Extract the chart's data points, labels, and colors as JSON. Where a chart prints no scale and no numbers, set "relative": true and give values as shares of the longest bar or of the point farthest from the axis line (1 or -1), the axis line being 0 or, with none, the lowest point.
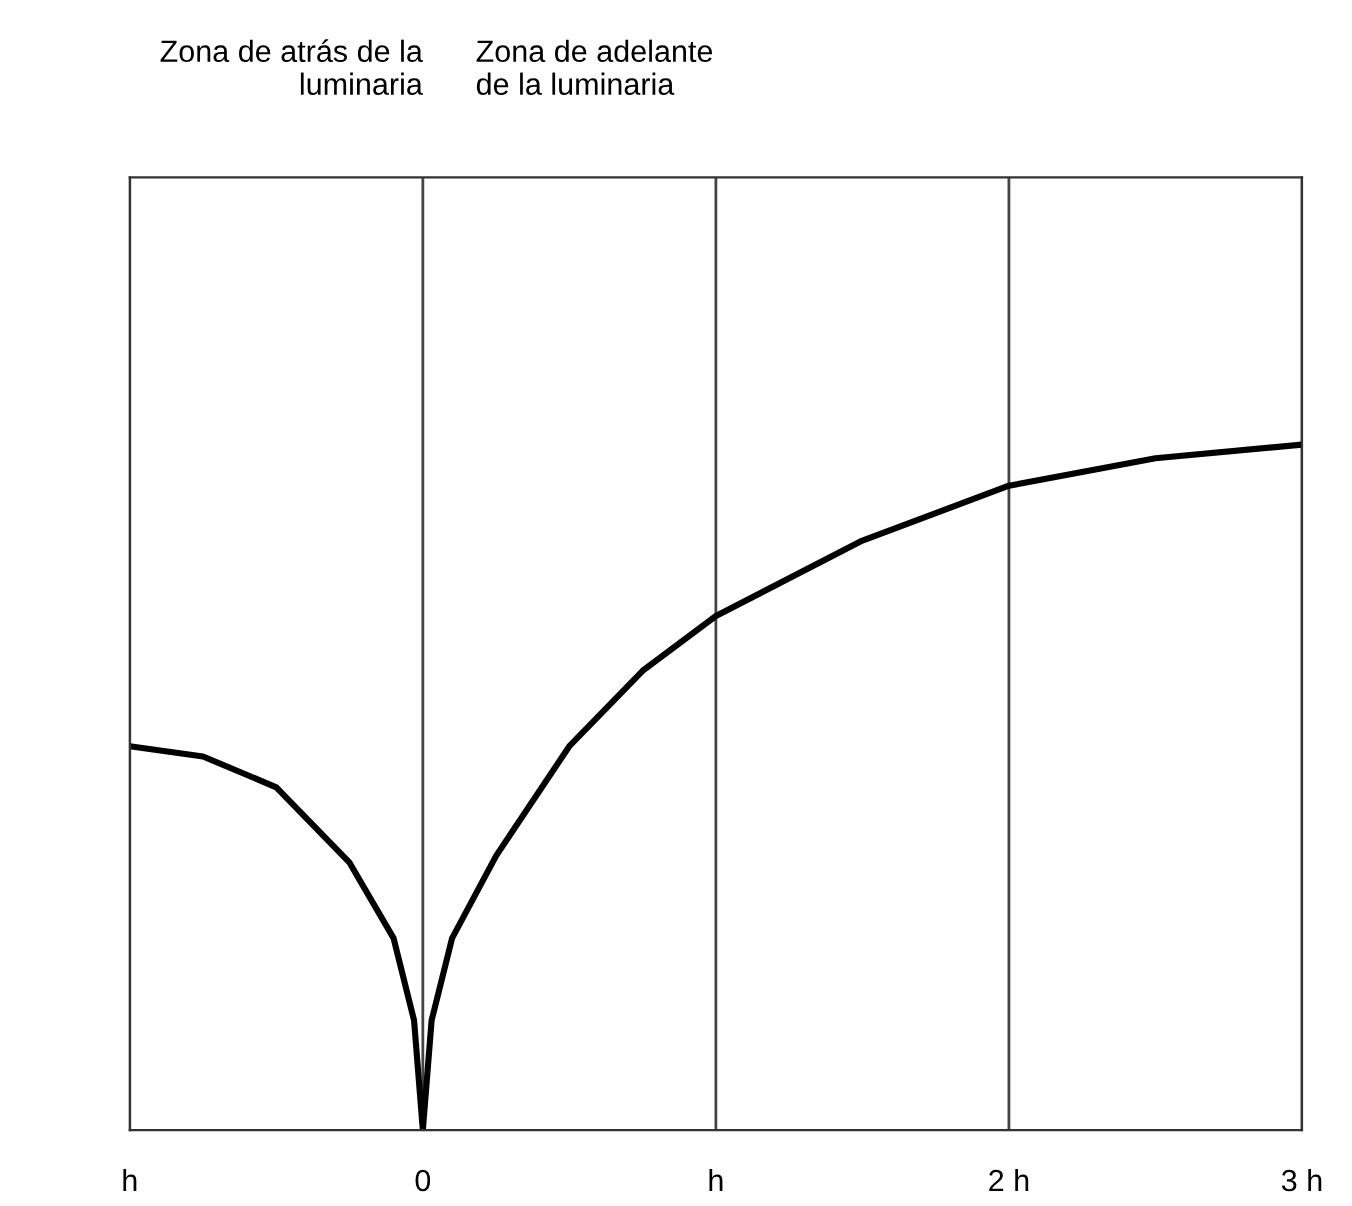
{
  "chart_data": {
    "type": "line",
    "relative": true,
    "x": [
      -1,
      -0.75,
      -0.5,
      -0.25,
      -0.1,
      -0.03,
      0,
      0.03,
      0.1,
      0.25,
      0.5,
      0.75,
      1,
      1.5,
      2,
      2.5,
      3
    ],
    "values": [
      0.56,
      0.545,
      0.5,
      0.39,
      0.28,
      0.16,
      0,
      0.16,
      0.28,
      0.4,
      0.56,
      0.67,
      0.75,
      0.86,
      0.94,
      0.98,
      1
    ],
    "color": "#000000",
    "xlim": [
      -1,
      3
    ],
    "xticks": [
      {
        "value": -1,
        "label": "h"
      },
      0,
      {
        "value": 1,
        "label": "h"
      },
      {
        "value": 2,
        "label": "2 h"
      },
      {
        "value": 3,
        "label": "3 h"
      }
    ],
    "grid": "x",
    "annotations": [
      "Zona de atrás de la\nluminaria",
      "Zona de adelante\nde la luminaria"
    ]
  }
}
